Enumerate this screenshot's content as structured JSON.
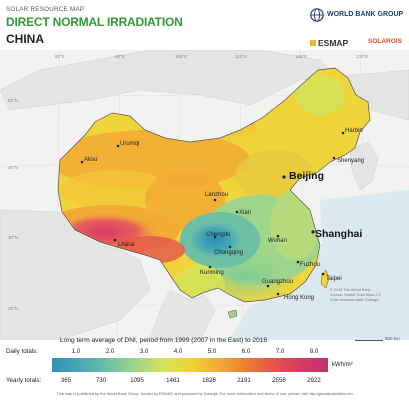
{
  "header": {
    "supertitle": "SOLAR RESOURCE MAP",
    "title": "DIRECT NORMAL IRRADIATION",
    "subtitle": "CHINA"
  },
  "logos": {
    "worldbank": "WORLD BANK GROUP",
    "esmap": "ESMAP",
    "solargis": "SOLARGIS"
  },
  "map": {
    "cities": [
      "Harbin",
      "Shenyang",
      "Beijing",
      "Urumqi",
      "Aksu",
      "Lanzhou",
      "Xian",
      "Wuhan",
      "Shanghai",
      "Lhasa",
      "Chengdu",
      "Chongqing",
      "Kunming",
      "Fuzhou",
      "Taipei",
      "Guangzhou",
      "Hong Kong"
    ],
    "longitudes": [
      "80°E",
      "90°E",
      "100°E",
      "110°E",
      "120°E",
      "130°E"
    ],
    "latitudes": [
      "50°N",
      "40°N",
      "30°N",
      "20°N"
    ],
    "copyright": [
      "© 2019 The World Bank",
      "Source: Global Solar Atlas 2.0",
      "Solar resource data: Solargis"
    ],
    "scale": "500 km"
  },
  "legend": {
    "caption": "Long term average of DNI, period from 1999 (2007 in the East) to 2018",
    "daily_label": "Daily totals:",
    "yearly_label": "Yearly totals:",
    "daily_ticks": [
      "1.0",
      "2.0",
      "3.0",
      "4.0",
      "5.0",
      "6.0",
      "7.0",
      "8.0"
    ],
    "yearly_ticks": [
      "365",
      "730",
      "1095",
      "1461",
      "1826",
      "2191",
      "2556",
      "2922"
    ],
    "unit": "kWh/m²",
    "colors": [
      "#2f8fb5",
      "#49a8b6",
      "#6cc0a3",
      "#9fd48b",
      "#d2e35a",
      "#f0d43b",
      "#f2ac35",
      "#ea8032",
      "#e5554b",
      "#d83a66",
      "#c2316f"
    ]
  },
  "footer": "This map is published by the World Bank Group, funded by ESMAP, and prepared by Solargis. For more information and terms of use, please visit http://globalsolaratlas.info"
}
